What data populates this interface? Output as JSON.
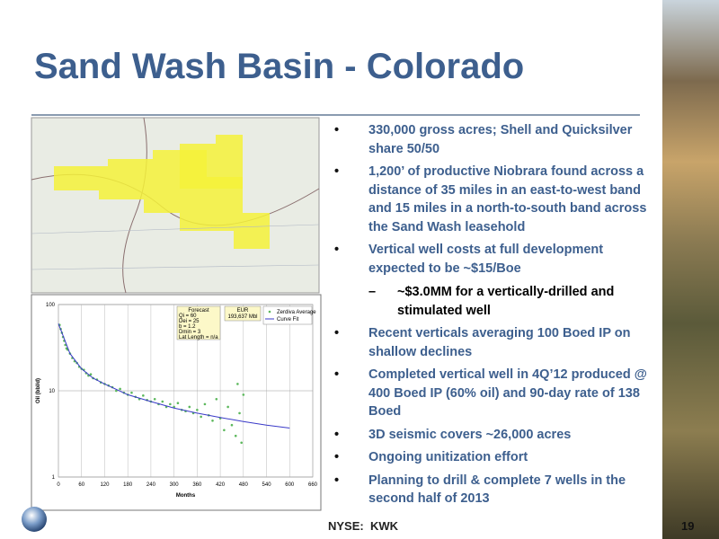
{
  "header": {
    "title": "Sand Wash Basin - Colorado"
  },
  "bullets": [
    {
      "text": "330,000 gross acres; Shell and Quicksilver share 50/50"
    },
    {
      "text": "1,200’ of productive Niobrara found across a distance of 35 miles in an east-to-west band and 15 miles in a north-to-south band across the Sand Wash leasehold"
    },
    {
      "text": "Vertical well costs at full development expected to be ~$15/Boe",
      "subitems": [
        "~$3.0MM for a vertically-drilled and stimulated well"
      ]
    },
    {
      "text": "Recent verticals averaging 100 Boed IP on shallow declines"
    },
    {
      "text": "Completed vertical well in 4Q’12 produced @ 400 Boed IP (60% oil) and 90-day rate of 138 Boed"
    },
    {
      "text": "3D seismic covers ~26,000 acres"
    },
    {
      "text": "Ongoing unitization effort"
    },
    {
      "text": "Planning to drill & complete 7 wells in the second half of 2013"
    }
  ],
  "chart": {
    "type": "scatter",
    "x_label": "Months",
    "y_label": "Oil (bbl/d)",
    "log_y": true,
    "grid": true,
    "xlim": [
      0,
      660
    ],
    "xticks": [
      0,
      60,
      120,
      180,
      240,
      300,
      360,
      420,
      480,
      540,
      600,
      660
    ],
    "ylim": [
      1,
      100
    ],
    "yticks": [
      1,
      10,
      100
    ],
    "forecast_box": [
      "Forecast",
      "Qi = 60",
      "Dei = 25",
      "b = 1.2",
      "Dmin = 3",
      "Lat Length = n/a"
    ],
    "eur_box": [
      "EUR",
      "193,637 Mbl"
    ],
    "series": [
      {
        "name": "Zerdiva Average",
        "color": "#5cb85c",
        "kind": "points",
        "x": [
          3,
          6,
          9,
          12,
          15,
          18,
          21,
          24,
          30,
          36,
          42,
          48,
          54,
          60,
          66,
          72,
          78,
          84,
          90,
          100,
          110,
          120,
          130,
          140,
          150,
          160,
          170,
          180,
          190,
          200,
          210,
          220,
          230,
          240,
          250,
          260,
          270,
          280,
          290,
          300,
          310,
          320,
          330,
          340,
          350,
          360,
          370,
          380,
          390,
          400,
          410,
          420,
          430,
          440,
          450,
          460,
          465,
          470,
          475,
          480
        ],
        "values": [
          58,
          52,
          47,
          42,
          38,
          34,
          31,
          30,
          27,
          24,
          22,
          21,
          19,
          18,
          17.5,
          16,
          15,
          15.5,
          14,
          13.5,
          12.5,
          12,
          11.5,
          11,
          10,
          10.5,
          9.5,
          9,
          9.5,
          8.5,
          8,
          8.8,
          7.8,
          7.5,
          8,
          7,
          7.5,
          6.5,
          7,
          6.5,
          7.2,
          6,
          5.8,
          6.5,
          5.5,
          6,
          5,
          7,
          5.2,
          4.5,
          8,
          4.8,
          3.5,
          6.5,
          4,
          3,
          12,
          5.5,
          2.5,
          9
        ]
      },
      {
        "name": "Curve Fit",
        "color": "#3a3ac8",
        "kind": "line",
        "x": [
          0,
          30,
          60,
          90,
          120,
          180,
          240,
          300,
          360,
          420,
          480,
          540,
          600
        ],
        "values": [
          60,
          27,
          18,
          14,
          12,
          9,
          7.5,
          6.3,
          5.5,
          4.9,
          4.4,
          4,
          3.7
        ]
      }
    ]
  },
  "footer": {
    "ticker": "NYSE:  KWK",
    "page": 19
  }
}
